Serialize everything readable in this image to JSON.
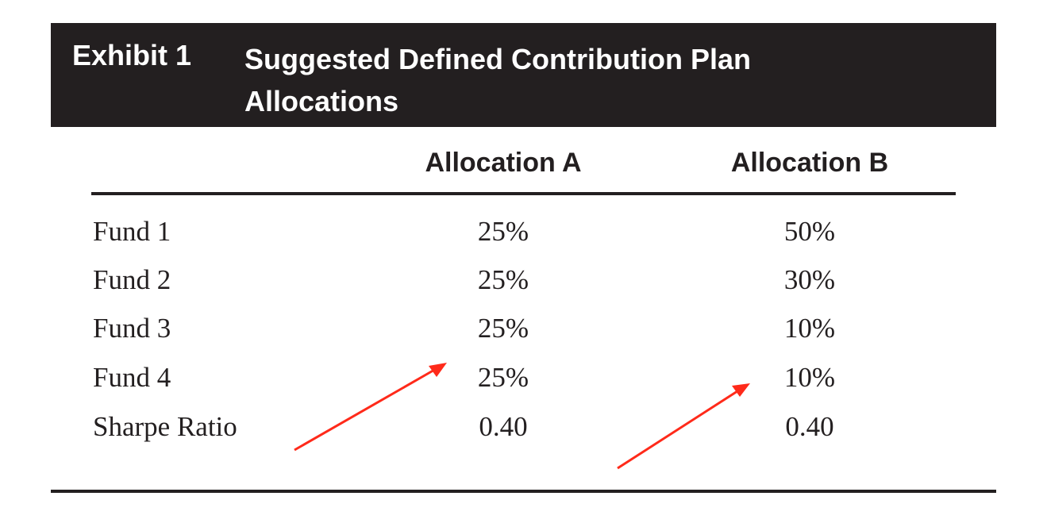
{
  "exhibit": {
    "label": "Exhibit 1",
    "title": "Suggested Defined Contribution Plan Allocations"
  },
  "table": {
    "columns": [
      "Allocation A",
      "Allocation B"
    ],
    "rows": [
      {
        "label": "Fund 1",
        "a": "25%",
        "b": "50%"
      },
      {
        "label": "Fund 2",
        "a": "25%",
        "b": "30%"
      },
      {
        "label": "Fund 3",
        "a": "25%",
        "b": "10%"
      },
      {
        "label": "Fund 4",
        "a": "25%",
        "b": "10%"
      },
      {
        "label": "Sharpe Ratio",
        "a": "0.40",
        "b": "0.40"
      }
    ]
  },
  "annotations": {
    "arrow_color": "#ff2a1a"
  },
  "colors": {
    "banner_bg": "#231f20",
    "banner_text": "#ffffff",
    "body_text": "#231f20"
  }
}
